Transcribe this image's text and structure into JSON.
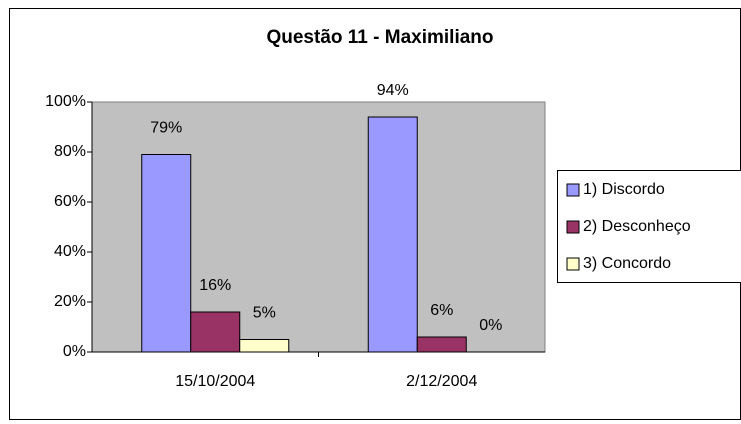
{
  "chart_data": {
    "type": "bar",
    "title": "Questão 11 - Maximiliano",
    "categories": [
      "15/10/2004",
      "2/12/2004"
    ],
    "series": [
      {
        "name": "1) Discordo",
        "color": "#9999ff",
        "values": [
          79,
          94
        ],
        "value_labels": [
          "79%",
          "94%"
        ]
      },
      {
        "name": "2) Desconheço",
        "color": "#993366",
        "values": [
          16,
          6
        ],
        "value_labels": [
          "16%",
          "6%"
        ]
      },
      {
        "name": "3) Concordo",
        "color": "#ffffcc",
        "values": [
          5,
          0
        ],
        "value_labels": [
          "5%",
          "0%"
        ]
      }
    ],
    "ylim": [
      0,
      100
    ],
    "yticks": [
      {
        "value": 0,
        "label": "0%"
      },
      {
        "value": 20,
        "label": "20%"
      },
      {
        "value": 40,
        "label": "40%"
      },
      {
        "value": 60,
        "label": "60%"
      },
      {
        "value": 80,
        "label": "80%"
      },
      {
        "value": 100,
        "label": "100%"
      }
    ],
    "legend": "right",
    "plot_background": "#c0c0c0"
  }
}
